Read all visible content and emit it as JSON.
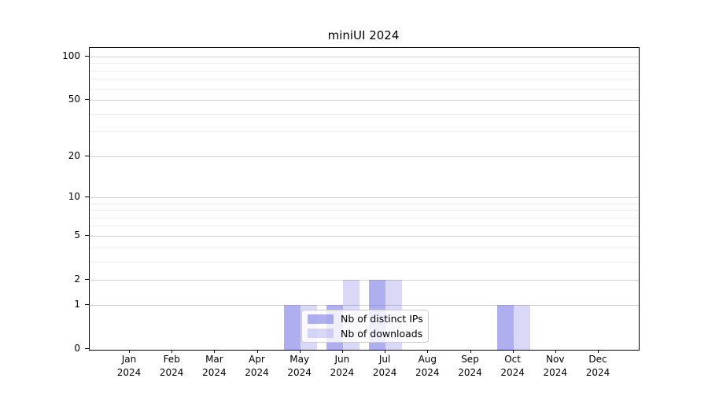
{
  "title": "miniUI 2024",
  "chart_data": {
    "type": "bar",
    "title": "miniUI 2024",
    "categories": [
      "Jan",
      "Feb",
      "Mar",
      "Apr",
      "May",
      "Jun",
      "Jul",
      "Aug",
      "Sep",
      "Oct",
      "Nov",
      "Dec"
    ],
    "category_year": "2024",
    "series": [
      {
        "name": "Nb of distinct IPs",
        "values": [
          0,
          0,
          0,
          0,
          1,
          1,
          2,
          0,
          0,
          1,
          0,
          0
        ],
        "color": "rgba(110,110,225,0.55)"
      },
      {
        "name": "Nb of downloads",
        "values": [
          0,
          0,
          0,
          0,
          1,
          2,
          2,
          0,
          0,
          1,
          0,
          0
        ],
        "color": "rgba(110,110,225,0.26)"
      }
    ],
    "xlabel": "",
    "ylabel": "",
    "yscale": "log1p",
    "ylim": [
      0,
      100
    ],
    "yticks": [
      0,
      1,
      2,
      5,
      10,
      20,
      50,
      100
    ],
    "yticks_minor": [
      3,
      4,
      6,
      7,
      8,
      9,
      30,
      40,
      60,
      70,
      80,
      90
    ],
    "grid": true,
    "legend": {
      "labels": [
        "Nb of distinct IPs",
        "Nb of downloads"
      ],
      "position": "lower center"
    }
  },
  "colors": {
    "grid_major": "#d2d2d2",
    "grid_minor": "#ececec",
    "axis": "#000000",
    "text": "#000000",
    "bar_dark": "rgba(110,110,225,0.55)",
    "bar_light": "rgba(110,110,225,0.26)"
  }
}
